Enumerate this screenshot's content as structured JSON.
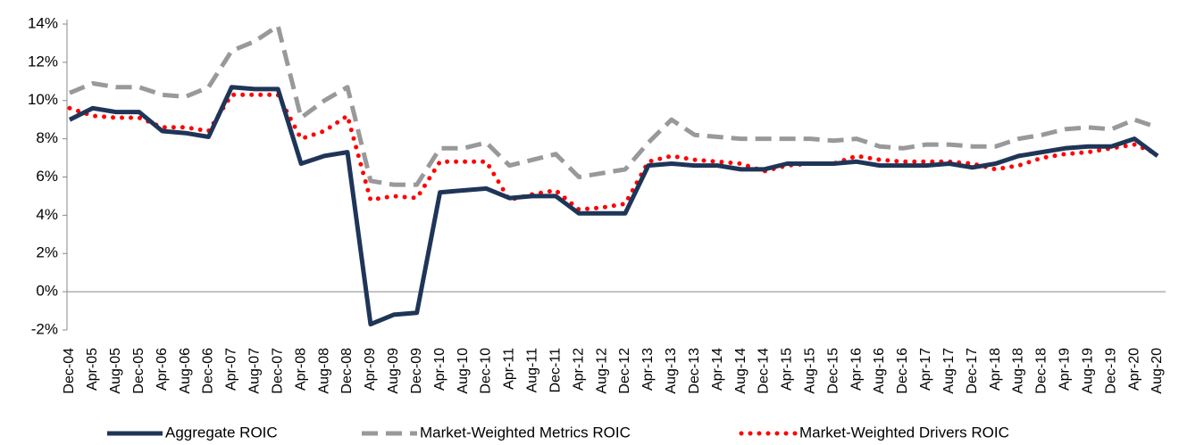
{
  "chart_data": {
    "type": "line",
    "categories": [
      "Dec-04",
      "Apr-05",
      "Aug-05",
      "Dec-05",
      "Apr-06",
      "Aug-06",
      "Dec-06",
      "Apr-07",
      "Aug-07",
      "Dec-07",
      "Apr-08",
      "Aug-08",
      "Dec-08",
      "Apr-09",
      "Aug-09",
      "Dec-09",
      "Apr-10",
      "Aug-10",
      "Dec-10",
      "Apr-11",
      "Aug-11",
      "Dec-11",
      "Apr-12",
      "Aug-12",
      "Dec-12",
      "Apr-13",
      "Aug-13",
      "Dec-13",
      "Apr-14",
      "Aug-14",
      "Dec-14",
      "Apr-15",
      "Aug-15",
      "Dec-15",
      "Apr-16",
      "Aug-16",
      "Dec-16",
      "Apr-17",
      "Aug-17",
      "Dec-17",
      "Apr-18",
      "Aug-18",
      "Dec-18",
      "Apr-19",
      "Aug-19",
      "Dec-19",
      "Apr-20",
      "Aug-20"
    ],
    "series": [
      {
        "name": "Aggregate ROIC",
        "color": "#1f3558",
        "style": "solid",
        "values": [
          9.0,
          9.6,
          9.4,
          9.4,
          8.4,
          8.3,
          8.1,
          10.7,
          10.6,
          10.6,
          6.7,
          7.1,
          7.3,
          -1.7,
          -1.2,
          -1.1,
          5.2,
          5.3,
          5.4,
          4.9,
          5.0,
          5.0,
          4.1,
          4.1,
          4.1,
          6.6,
          6.7,
          6.6,
          6.6,
          6.4,
          6.4,
          6.7,
          6.7,
          6.7,
          6.8,
          6.6,
          6.6,
          6.6,
          6.7,
          6.5,
          6.7,
          7.1,
          7.3,
          7.5,
          7.6,
          7.6,
          8.0,
          7.1
        ]
      },
      {
        "name": "Market-Weighted Metrics ROIC",
        "color": "#999999",
        "style": "dashed",
        "values": [
          10.4,
          10.9,
          10.7,
          10.7,
          10.3,
          10.2,
          10.7,
          12.6,
          13.1,
          13.9,
          9.1,
          10.0,
          10.7,
          5.8,
          5.6,
          5.6,
          7.5,
          7.5,
          7.8,
          6.6,
          6.9,
          7.2,
          6.0,
          6.2,
          6.4,
          7.8,
          9.0,
          8.2,
          8.1,
          8.0,
          8.0,
          8.0,
          8.0,
          7.9,
          8.0,
          7.6,
          7.5,
          7.7,
          7.7,
          7.6,
          7.6,
          8.0,
          8.2,
          8.5,
          8.6,
          8.5,
          9.0,
          8.6
        ]
      },
      {
        "name": "Market-Weighted Drivers ROIC",
        "color": "#ff0000",
        "style": "dotted",
        "values": [
          9.6,
          9.2,
          9.1,
          9.1,
          8.6,
          8.6,
          8.4,
          10.3,
          10.3,
          10.3,
          8.0,
          8.4,
          9.2,
          4.8,
          5.0,
          4.9,
          6.8,
          6.8,
          6.8,
          4.8,
          5.1,
          5.3,
          4.3,
          4.4,
          4.6,
          6.8,
          7.1,
          6.9,
          6.8,
          6.7,
          6.3,
          6.6,
          6.7,
          6.7,
          7.1,
          6.9,
          6.8,
          6.8,
          6.8,
          6.7,
          6.4,
          6.6,
          7.0,
          7.2,
          7.3,
          7.5,
          7.7,
          7.2
        ]
      }
    ],
    "ylim": [
      -2,
      14
    ],
    "yticks": [
      {
        "value": -2,
        "label": "-2%"
      },
      {
        "value": 0,
        "label": "0%"
      },
      {
        "value": 2,
        "label": "2%"
      },
      {
        "value": 4,
        "label": "4%"
      },
      {
        "value": 6,
        "label": "6%"
      },
      {
        "value": 8,
        "label": "8%"
      },
      {
        "value": 10,
        "label": "10%"
      },
      {
        "value": 12,
        "label": "12%"
      },
      {
        "value": 14,
        "label": "14%"
      }
    ],
    "legend": "bottom"
  }
}
